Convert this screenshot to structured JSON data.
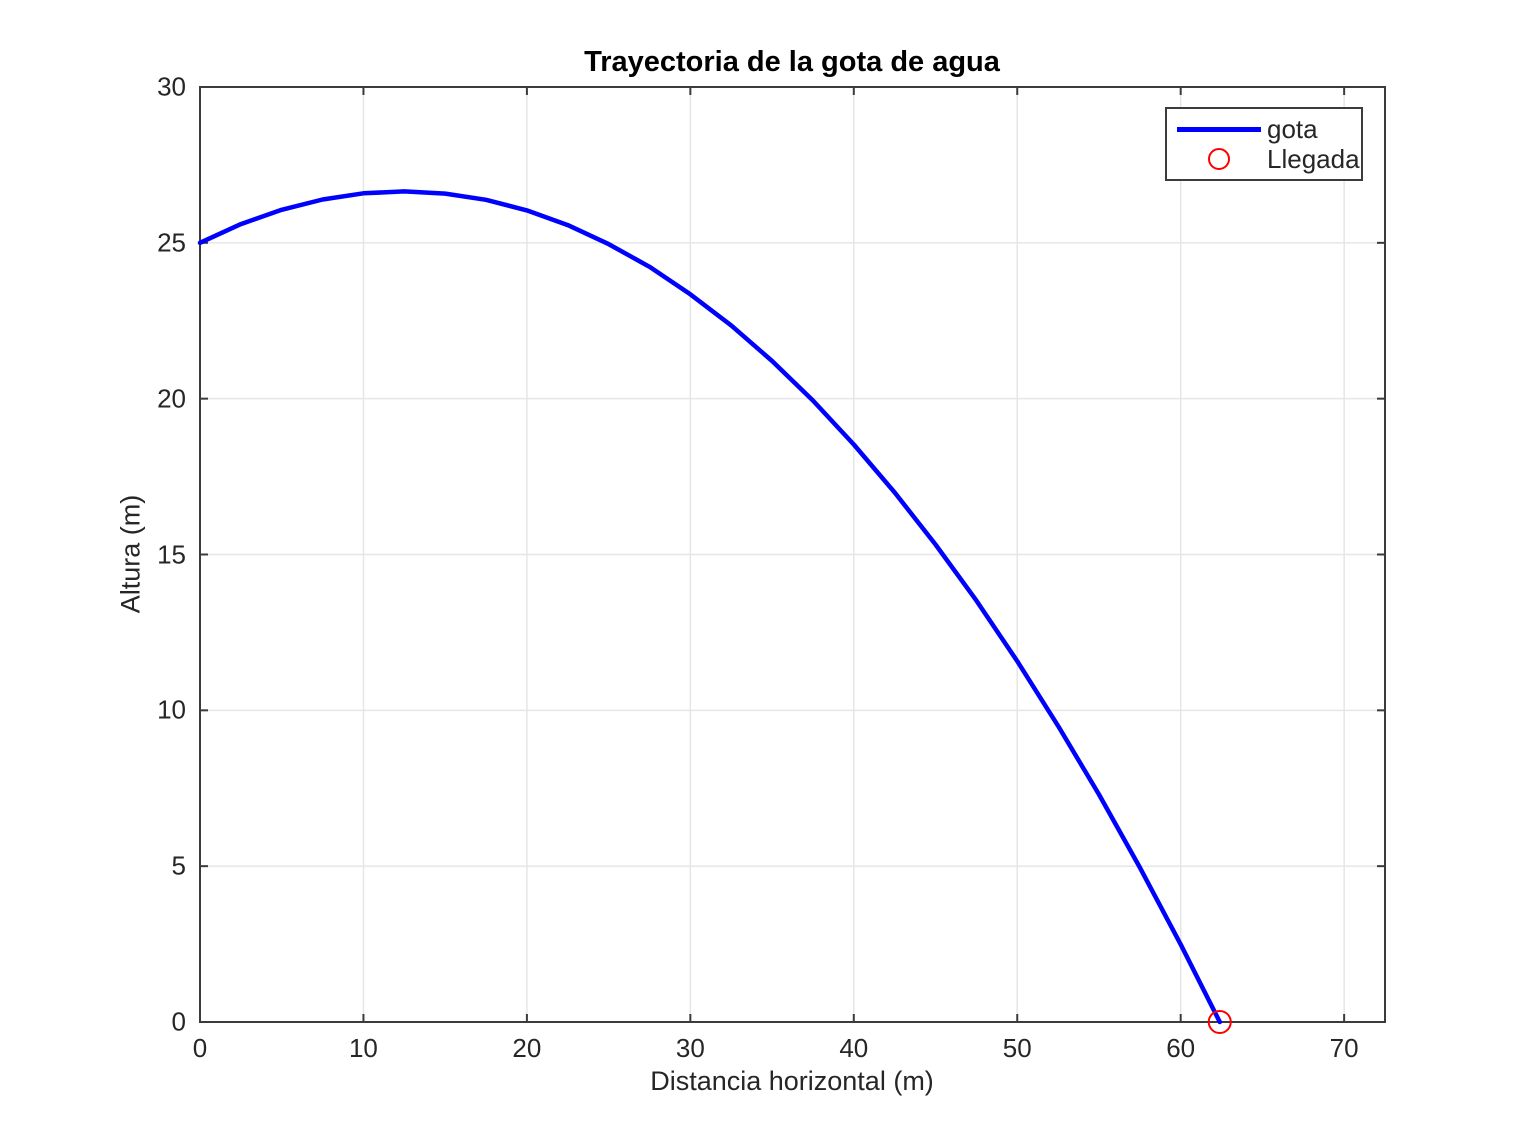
{
  "colors": {
    "line": "#0000ff",
    "marker": "#ff0000",
    "grid": "#e6e6e6",
    "axis": "#3b3b3b",
    "text": "#262626",
    "background": "#ffffff"
  },
  "legend": {
    "items": [
      {
        "label": "gota",
        "swatch": "line",
        "color": "#0000ff"
      },
      {
        "label": "Llegada",
        "swatch": "open-circle",
        "color": "#ff0000"
      }
    ]
  },
  "chart_data": {
    "type": "line",
    "title": "Trayectoria de la gota de agua",
    "xlabel": "Distancia horizontal (m)",
    "ylabel": "Altura (m)",
    "xlim": [
      0,
      72.5
    ],
    "ylim": [
      0,
      30
    ],
    "x_ticks": [
      0,
      10,
      20,
      30,
      40,
      50,
      60,
      70
    ],
    "y_ticks": [
      0,
      5,
      10,
      15,
      20,
      25,
      30
    ],
    "grid": true,
    "legend_position": "top-right",
    "series": [
      {
        "name": "gota",
        "color": "#0000ff",
        "x": [
          0,
          2.5,
          5,
          7.5,
          10,
          12.5,
          15,
          17.5,
          20,
          22.5,
          25,
          27.5,
          30,
          32.5,
          35,
          37.5,
          40,
          42.5,
          45,
          47.5,
          50,
          52.5,
          55,
          57.5,
          60,
          62.39
        ],
        "y": [
          25.0,
          25.6,
          26.06,
          26.39,
          26.59,
          26.65,
          26.58,
          26.38,
          26.04,
          25.57,
          24.96,
          24.23,
          23.35,
          22.35,
          21.21,
          19.94,
          18.53,
          16.99,
          15.32,
          13.52,
          11.58,
          9.5,
          7.3,
          4.96,
          2.49,
          0.0
        ]
      }
    ],
    "markers": [
      {
        "name": "Llegada",
        "x": 62.39,
        "y": 0,
        "shape": "open-circle",
        "color": "#ff0000"
      }
    ]
  }
}
